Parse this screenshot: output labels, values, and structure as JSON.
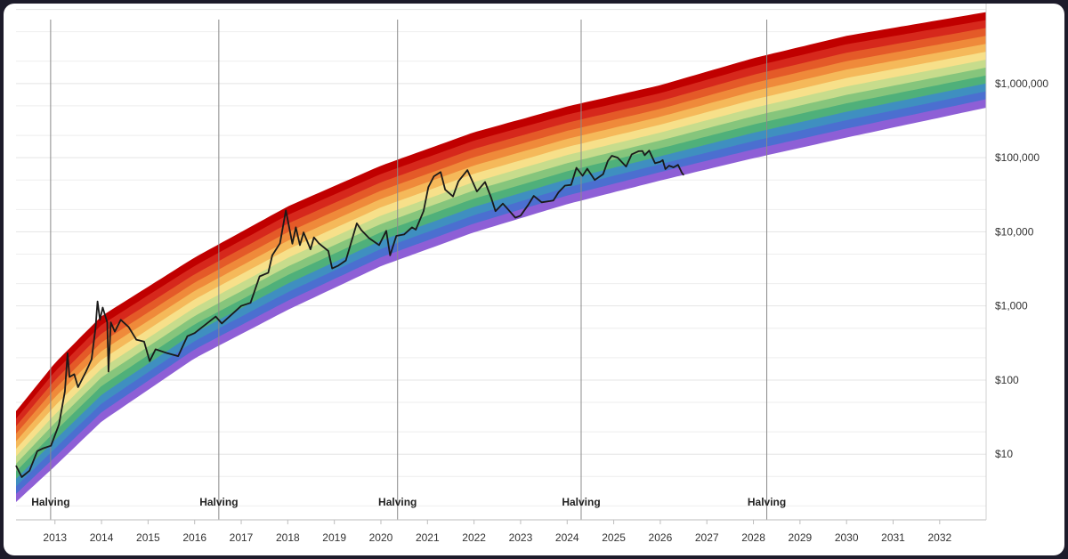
{
  "chart_data": {
    "type": "area",
    "title": "",
    "xlabel": "",
    "ylabel": "",
    "y_scale": "log",
    "xlim": [
      "2012-03-01",
      "2032-12-31"
    ],
    "ylim": [
      1,
      10000000
    ],
    "grid": true,
    "legend": "none",
    "x_tick_labels": [
      "2013",
      "2014",
      "2015",
      "2016",
      "2017",
      "2018",
      "2019",
      "2020",
      "2021",
      "2022",
      "2023",
      "2024",
      "2025",
      "2026",
      "2027",
      "2028",
      "2029",
      "2030",
      "2031",
      "2032"
    ],
    "y_tick_labels": [
      {
        "value": 10,
        "label": "$10"
      },
      {
        "value": 100,
        "label": "$100"
      },
      {
        "value": 1000,
        "label": "$1,000"
      },
      {
        "value": 10000,
        "label": "$10,000"
      },
      {
        "value": 100000,
        "label": "$100,000"
      },
      {
        "value": 1000000,
        "label": "$1,000,000"
      }
    ],
    "halving_label": "Halving",
    "halvings": [
      "2012-11-28",
      "2016-07-09",
      "2020-05-11",
      "2024-04-20",
      "2028-04-15"
    ],
    "rainbow_bands": {
      "colors_top_to_bottom": [
        "#c00000",
        "#d6281c",
        "#e45a28",
        "#ef8a3a",
        "#f5b95a",
        "#f7e08a",
        "#c7dc8c",
        "#86c57c",
        "#4fb07a",
        "#3f8fc0",
        "#4b6fd0",
        "#8e5fd6"
      ],
      "top_line": [
        {
          "x": "2012-03-01",
          "y": 38
        },
        {
          "x": "2013-01-01",
          "y": 170
        },
        {
          "x": "2014-01-01",
          "y": 730
        },
        {
          "x": "2016-01-01",
          "y": 4500
        },
        {
          "x": "2018-01-01",
          "y": 22000
        },
        {
          "x": "2020-01-01",
          "y": 78000
        },
        {
          "x": "2022-01-01",
          "y": 220000
        },
        {
          "x": "2024-01-01",
          "y": 490000
        },
        {
          "x": "2026-01-01",
          "y": 950000
        },
        {
          "x": "2028-01-01",
          "y": 2200000
        },
        {
          "x": "2030-01-01",
          "y": 4400000
        },
        {
          "x": "2032-12-31",
          "y": 9200000
        }
      ],
      "bottom_line": [
        {
          "x": "2012-03-01",
          "y": 2.3
        },
        {
          "x": "2013-01-01",
          "y": 7
        },
        {
          "x": "2014-01-01",
          "y": 28
        },
        {
          "x": "2016-01-01",
          "y": 200
        },
        {
          "x": "2018-01-01",
          "y": 900
        },
        {
          "x": "2020-01-01",
          "y": 3500
        },
        {
          "x": "2022-01-01",
          "y": 10000
        },
        {
          "x": "2024-01-01",
          "y": 24000
        },
        {
          "x": "2026-01-01",
          "y": 50000
        },
        {
          "x": "2028-01-01",
          "y": 100000
        },
        {
          "x": "2030-01-01",
          "y": 190000
        },
        {
          "x": "2032-12-31",
          "y": 480000
        }
      ]
    },
    "series": [
      {
        "points": [
          {
            "x": "2012-03-01",
            "y": 7
          },
          {
            "x": "2012-04-15",
            "y": 4.9
          },
          {
            "x": "2012-06-15",
            "y": 6
          },
          {
            "x": "2012-08-15",
            "y": 11
          },
          {
            "x": "2012-10-01",
            "y": 12
          },
          {
            "x": "2012-12-01",
            "y": 13
          },
          {
            "x": "2013-02-01",
            "y": 25
          },
          {
            "x": "2013-03-20",
            "y": 70
          },
          {
            "x": "2013-04-10",
            "y": 230
          },
          {
            "x": "2013-04-25",
            "y": 110
          },
          {
            "x": "2013-06-01",
            "y": 120
          },
          {
            "x": "2013-07-01",
            "y": 80
          },
          {
            "x": "2013-09-01",
            "y": 130
          },
          {
            "x": "2013-10-15",
            "y": 190
          },
          {
            "x": "2013-11-15",
            "y": 500
          },
          {
            "x": "2013-12-01",
            "y": 1150
          },
          {
            "x": "2013-12-20",
            "y": 650
          },
          {
            "x": "2014-01-10",
            "y": 950
          },
          {
            "x": "2014-02-15",
            "y": 600
          },
          {
            "x": "2014-02-25",
            "y": 130
          },
          {
            "x": "2014-03-15",
            "y": 600
          },
          {
            "x": "2014-04-15",
            "y": 450
          },
          {
            "x": "2014-06-01",
            "y": 650
          },
          {
            "x": "2014-08-01",
            "y": 520
          },
          {
            "x": "2014-10-01",
            "y": 350
          },
          {
            "x": "2014-12-01",
            "y": 330
          },
          {
            "x": "2015-01-14",
            "y": 180
          },
          {
            "x": "2015-03-01",
            "y": 260
          },
          {
            "x": "2015-06-01",
            "y": 230
          },
          {
            "x": "2015-08-25",
            "y": 210
          },
          {
            "x": "2015-11-05",
            "y": 390
          },
          {
            "x": "2016-01-01",
            "y": 430
          },
          {
            "x": "2016-06-15",
            "y": 720
          },
          {
            "x": "2016-08-01",
            "y": 580
          },
          {
            "x": "2017-01-01",
            "y": 1000
          },
          {
            "x": "2017-03-15",
            "y": 1100
          },
          {
            "x": "2017-05-25",
            "y": 2500
          },
          {
            "x": "2017-08-01",
            "y": 2800
          },
          {
            "x": "2017-09-01",
            "y": 4800
          },
          {
            "x": "2017-11-01",
            "y": 7000
          },
          {
            "x": "2017-12-17",
            "y": 19500
          },
          {
            "x": "2018-02-06",
            "y": 6900
          },
          {
            "x": "2018-03-05",
            "y": 11500
          },
          {
            "x": "2018-04-06",
            "y": 6600
          },
          {
            "x": "2018-05-05",
            "y": 9800
          },
          {
            "x": "2018-06-28",
            "y": 5800
          },
          {
            "x": "2018-07-25",
            "y": 8400
          },
          {
            "x": "2018-09-01",
            "y": 7000
          },
          {
            "x": "2018-11-15",
            "y": 5500
          },
          {
            "x": "2018-12-15",
            "y": 3200
          },
          {
            "x": "2019-02-01",
            "y": 3500
          },
          {
            "x": "2019-04-01",
            "y": 4100
          },
          {
            "x": "2019-06-26",
            "y": 13000
          },
          {
            "x": "2019-08-01",
            "y": 10500
          },
          {
            "x": "2019-10-01",
            "y": 8200
          },
          {
            "x": "2019-12-18",
            "y": 6600
          },
          {
            "x": "2020-02-12",
            "y": 10300
          },
          {
            "x": "2020-03-13",
            "y": 4800
          },
          {
            "x": "2020-05-01",
            "y": 8800
          },
          {
            "x": "2020-07-01",
            "y": 9200
          },
          {
            "x": "2020-09-01",
            "y": 11500
          },
          {
            "x": "2020-10-01",
            "y": 10700
          },
          {
            "x": "2020-12-01",
            "y": 19000
          },
          {
            "x": "2021-01-08",
            "y": 40000
          },
          {
            "x": "2021-02-20",
            "y": 56000
          },
          {
            "x": "2021-04-14",
            "y": 64000
          },
          {
            "x": "2021-05-20",
            "y": 37000
          },
          {
            "x": "2021-07-20",
            "y": 30000
          },
          {
            "x": "2021-09-01",
            "y": 48000
          },
          {
            "x": "2021-11-10",
            "y": 68000
          },
          {
            "x": "2022-01-24",
            "y": 35000
          },
          {
            "x": "2022-03-28",
            "y": 47000
          },
          {
            "x": "2022-05-15",
            "y": 29000
          },
          {
            "x": "2022-06-18",
            "y": 19000
          },
          {
            "x": "2022-08-15",
            "y": 24000
          },
          {
            "x": "2022-10-01",
            "y": 19500
          },
          {
            "x": "2022-11-21",
            "y": 15500
          },
          {
            "x": "2023-01-01",
            "y": 16500
          },
          {
            "x": "2023-03-01",
            "y": 23000
          },
          {
            "x": "2023-04-14",
            "y": 30500
          },
          {
            "x": "2023-06-15",
            "y": 25000
          },
          {
            "x": "2023-08-20",
            "y": 26000
          },
          {
            "x": "2023-09-15",
            "y": 26500
          },
          {
            "x": "2023-10-25",
            "y": 34000
          },
          {
            "x": "2023-12-15",
            "y": 42000
          },
          {
            "x": "2024-02-01",
            "y": 43000
          },
          {
            "x": "2024-03-14",
            "y": 73000
          },
          {
            "x": "2024-05-01",
            "y": 57000
          },
          {
            "x": "2024-06-07",
            "y": 71000
          },
          {
            "x": "2024-08-05",
            "y": 50000
          },
          {
            "x": "2024-10-10",
            "y": 60000
          },
          {
            "x": "2024-11-15",
            "y": 90000
          },
          {
            "x": "2024-12-17",
            "y": 106000
          },
          {
            "x": "2025-02-01",
            "y": 100000
          },
          {
            "x": "2025-04-08",
            "y": 76000
          },
          {
            "x": "2025-05-22",
            "y": 111000
          },
          {
            "x": "2025-07-14",
            "y": 122000
          },
          {
            "x": "2025-08-14",
            "y": 123000
          },
          {
            "x": "2025-09-01",
            "y": 108000
          },
          {
            "x": "2025-10-06",
            "y": 125000
          },
          {
            "x": "2025-11-21",
            "y": 84000
          },
          {
            "x": "2026-01-01",
            "y": 88000
          },
          {
            "x": "2026-01-20",
            "y": 93000
          },
          {
            "x": "2026-02-10",
            "y": 70000
          },
          {
            "x": "2026-03-10",
            "y": 78000
          },
          {
            "x": "2026-04-15",
            "y": 74000
          },
          {
            "x": "2026-05-20",
            "y": 80000
          },
          {
            "x": "2026-06-20",
            "y": 62000
          },
          {
            "x": "2026-07-05",
            "y": 58000
          }
        ]
      }
    ]
  }
}
